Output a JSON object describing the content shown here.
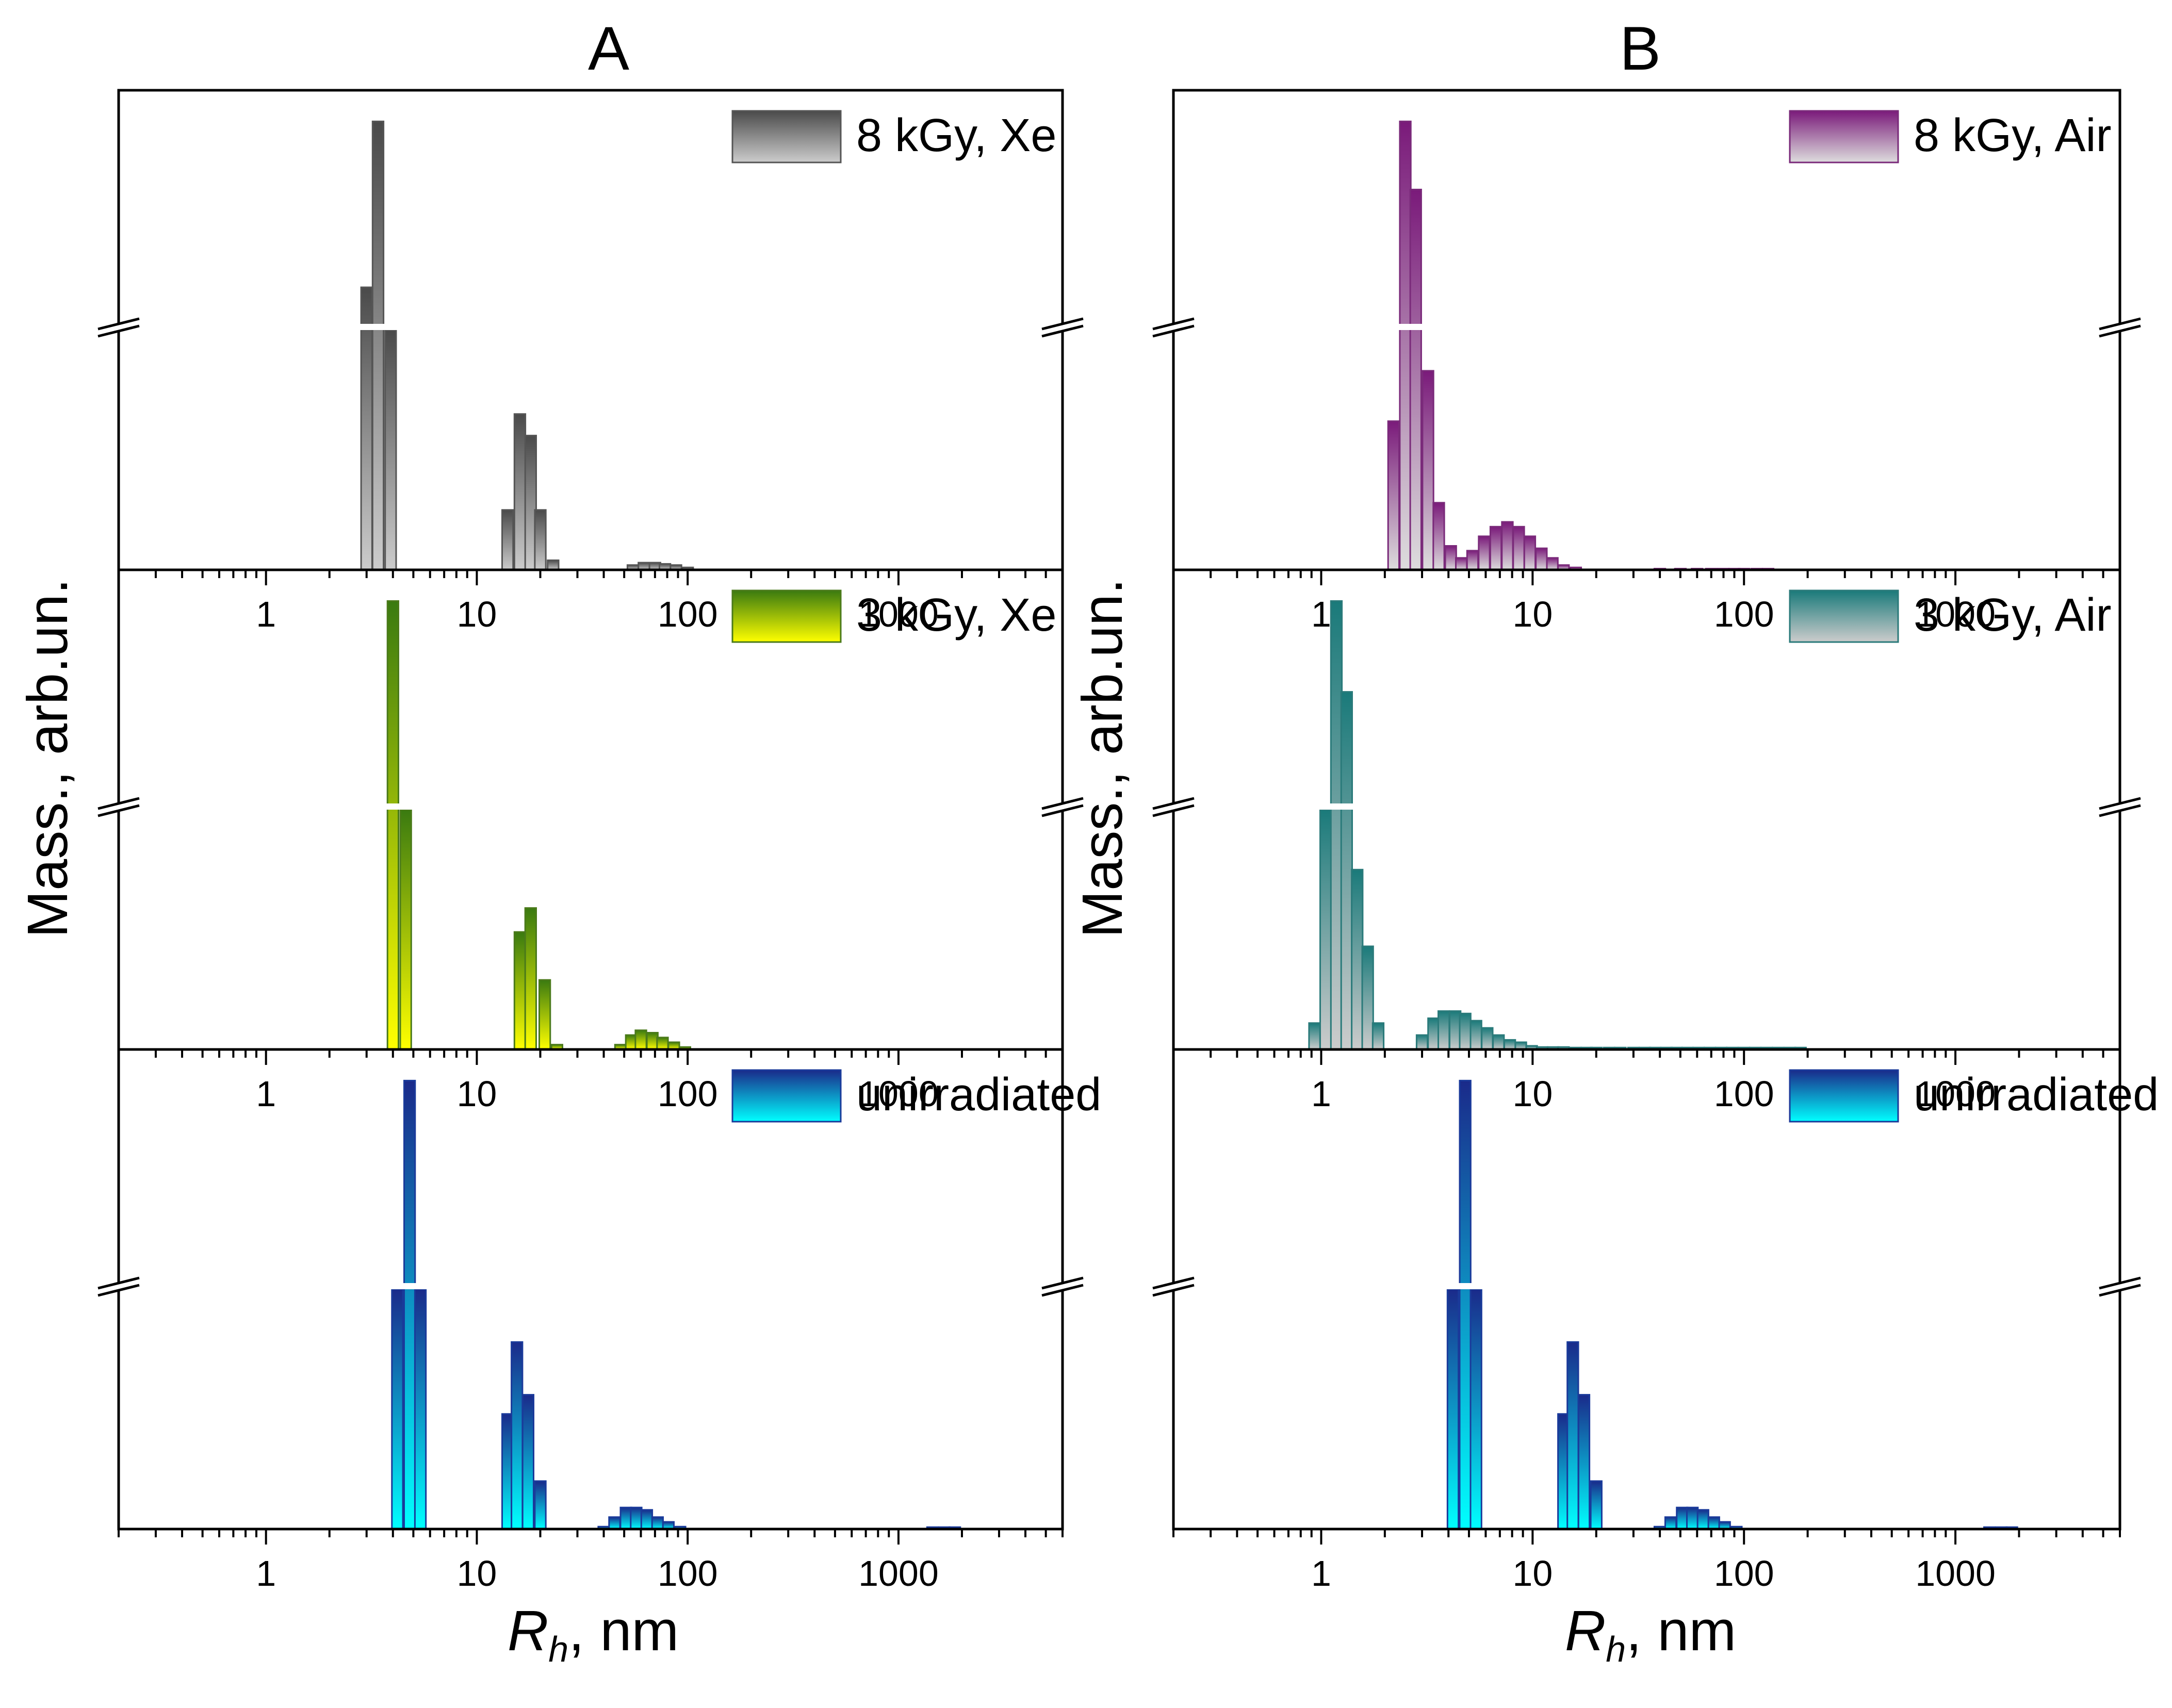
{
  "panel_titles": [
    "A",
    "B"
  ],
  "xlabel_main": "R",
  "xlabel_sub": "h",
  "xlabel_unit": ", nm",
  "ylabel": "Mass., arb.un.",
  "x_tick_labels": [
    "1",
    "10",
    "100",
    "1000"
  ],
  "chart_data": [
    {
      "type": "bar",
      "column": "A",
      "legend": "8 kGy, Xe",
      "colors": {
        "top": "#4a4a4a",
        "bottom": "#cccccc",
        "edge": "#555555"
      },
      "x_scale": "log",
      "xlim": [
        0.2,
        6000
      ],
      "axis_break": true,
      "x": [
        3.0,
        3.4,
        3.9,
        14,
        16,
        18,
        20,
        23,
        55,
        62,
        70,
        78,
        88,
        100
      ],
      "values": [
        1.15,
        1.85,
        1.0,
        0.25,
        0.65,
        0.56,
        0.25,
        0.04,
        0.02,
        0.03,
        0.03,
        0.025,
        0.02,
        0.01
      ]
    },
    {
      "type": "bar",
      "column": "A",
      "legend": "3 kGy, Xe",
      "colors": {
        "top": "#3a7a10",
        "bottom": "#ffff00",
        "edge": "#4a7a1a"
      },
      "x_scale": "log",
      "xlim": [
        0.2,
        6000
      ],
      "axis_break": true,
      "x": [
        4.0,
        4.6,
        16,
        18,
        21,
        24,
        48,
        54,
        60,
        68,
        76,
        86,
        97
      ],
      "values": [
        1.5,
        1.0,
        0.49,
        0.59,
        0.29,
        0.02,
        0.02,
        0.06,
        0.08,
        0.07,
        0.05,
        0.03,
        0.01
      ]
    },
    {
      "type": "bar",
      "column": "A",
      "legend": "unirradiated",
      "colors": {
        "top": "#1a2a8a",
        "bottom": "#00ffff",
        "edge": "#1a3a9a"
      },
      "x_scale": "log",
      "xlim": [
        0.2,
        6000
      ],
      "axis_break": true,
      "x": [
        4.2,
        4.8,
        5.4,
        14,
        15.5,
        17.5,
        20,
        40,
        45,
        51,
        57,
        64,
        72,
        81,
        92,
        1450,
        1650,
        1850
      ],
      "values": [
        1.0,
        1.8,
        1.0,
        0.48,
        0.78,
        0.56,
        0.2,
        0.01,
        0.05,
        0.09,
        0.09,
        0.08,
        0.05,
        0.03,
        0.01,
        0.008,
        0.008,
        0.008
      ]
    },
    {
      "type": "bar",
      "column": "B",
      "legend": "8 kGy, Air",
      "colors": {
        "top": "#7a1a7a",
        "bottom": "#dddddd",
        "edge": "#7a2a7a"
      },
      "x_scale": "log",
      "xlim": [
        0.2,
        6000
      ],
      "axis_break": true,
      "x": [
        2.2,
        2.5,
        2.8,
        3.2,
        3.6,
        4.1,
        4.6,
        5.2,
        5.9,
        6.7,
        7.6,
        8.6,
        9.7,
        11,
        12.4,
        14,
        16,
        40,
        50,
        60,
        70,
        80,
        90,
        100,
        115,
        130
      ],
      "values": [
        0.62,
        1.68,
        1.45,
        0.83,
        0.28,
        0.1,
        0.05,
        0.08,
        0.14,
        0.18,
        0.2,
        0.18,
        0.14,
        0.09,
        0.05,
        0.02,
        0.01,
        0.005,
        0.005,
        0.005,
        0.005,
        0.005,
        0.005,
        0.005,
        0.005,
        0.005
      ]
    },
    {
      "type": "bar",
      "column": "B",
      "legend": "3 kGy, Air",
      "colors": {
        "top": "#1a7a7a",
        "bottom": "#cccccc",
        "edge": "#2a7a7a"
      },
      "x_scale": "log",
      "xlim": [
        0.2,
        6000
      ],
      "axis_break": true,
      "x": [
        0.93,
        1.05,
        1.18,
        1.32,
        1.48,
        1.66,
        1.86,
        3.0,
        3.4,
        3.8,
        4.3,
        4.8,
        5.4,
        6.1,
        6.9,
        7.8,
        8.8,
        9.9,
        11.1,
        12.5,
        14,
        16,
        18,
        20,
        23,
        26,
        30,
        34,
        38,
        43,
        48,
        54,
        61,
        69,
        78,
        88,
        100,
        113,
        128,
        145,
        165,
        185
      ],
      "values": [
        0.11,
        1.0,
        1.82,
        1.45,
        0.75,
        0.43,
        0.11,
        0.06,
        0.13,
        0.16,
        0.16,
        0.15,
        0.12,
        0.09,
        0.06,
        0.04,
        0.03,
        0.015,
        0.01,
        0.01,
        0.01,
        0.008,
        0.008,
        0.008,
        0.008,
        0.008,
        0.008,
        0.008,
        0.008,
        0.008,
        0.008,
        0.008,
        0.008,
        0.008,
        0.008,
        0.008,
        0.008,
        0.008,
        0.008,
        0.008,
        0.008,
        0.008
      ]
    },
    {
      "type": "bar",
      "column": "B",
      "legend": "unirradiated",
      "colors": {
        "top": "#1a2a8a",
        "bottom": "#00ffff",
        "edge": "#1a3a9a"
      },
      "x_scale": "log",
      "xlim": [
        0.2,
        6000
      ],
      "axis_break": true,
      "x": [
        4.2,
        4.8,
        5.4,
        14,
        15.5,
        17.5,
        20,
        40,
        45,
        51,
        57,
        64,
        72,
        81,
        92,
        1450,
        1650,
        1850
      ],
      "values": [
        1.0,
        1.8,
        1.0,
        0.48,
        0.78,
        0.56,
        0.2,
        0.01,
        0.05,
        0.09,
        0.09,
        0.08,
        0.05,
        0.03,
        0.01,
        0.008,
        0.008,
        0.008
      ]
    }
  ]
}
